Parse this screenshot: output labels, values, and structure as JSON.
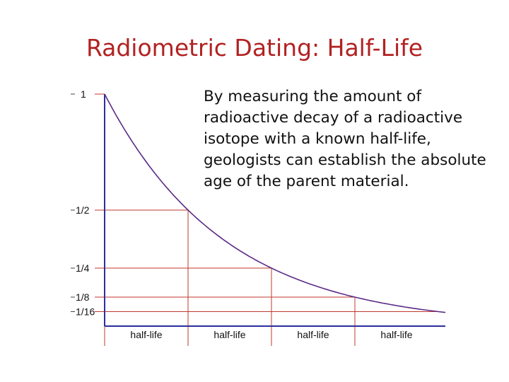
{
  "slide": {
    "title": "Radiometric Dating: Half-Life",
    "description": "By measuring the amount of radioactive decay of a radioactive isotope with a known half-life, geologists can establish the absolute age of the parent material."
  },
  "chart_data": {
    "type": "line",
    "title": "",
    "xlabel": "",
    "ylabel": "",
    "x_categories": [
      "half-life",
      "half-life",
      "half-life",
      "half-life"
    ],
    "y_ticks": [
      {
        "value": 1,
        "label": "1"
      },
      {
        "value": 0.5,
        "label": "1/2"
      },
      {
        "value": 0.25,
        "label": "1/4"
      },
      {
        "value": 0.125,
        "label": "1/8"
      },
      {
        "value": 0.0625,
        "label": "1/16"
      }
    ],
    "series": [
      {
        "x": [
          0,
          0.5,
          1,
          1.5,
          2,
          2.5,
          3,
          3.5,
          4
        ],
        "y": [
          1,
          0.707,
          0.5,
          0.354,
          0.25,
          0.177,
          0.125,
          0.088,
          0.0625
        ]
      }
    ],
    "xlim": [
      0,
      4.2
    ],
    "ylim": [
      0,
      1
    ],
    "grid": true,
    "colors": {
      "curve": "#5b2a86",
      "gridlines": "#c0392b",
      "axes": "#2b2f9e"
    }
  }
}
